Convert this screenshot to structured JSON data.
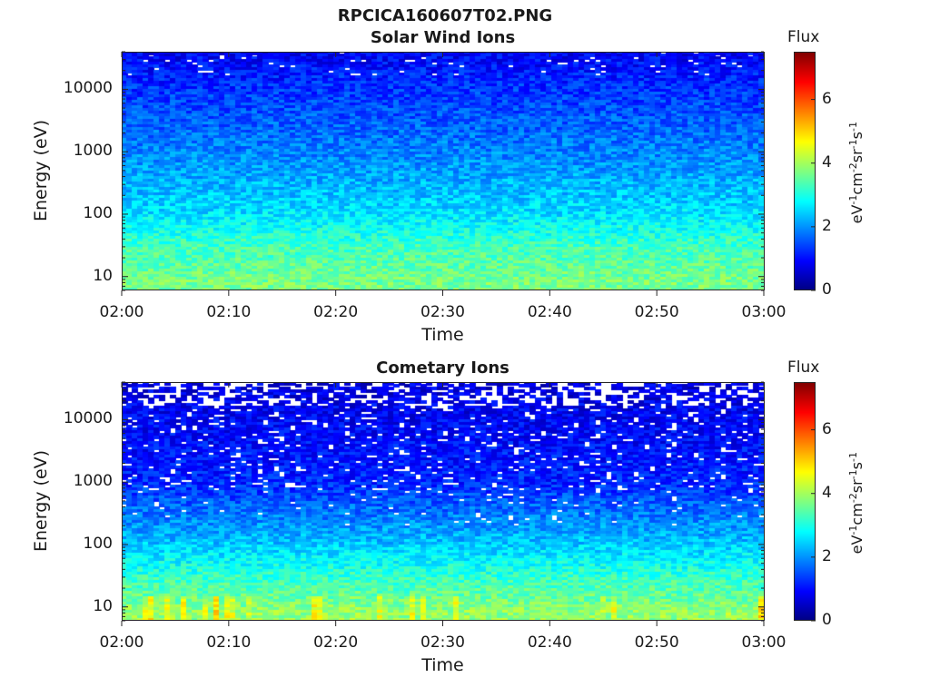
{
  "title": "RPCICA160607T02.PNG",
  "chart_data": [
    {
      "type": "heatmap",
      "title": "Solar Wind Ions",
      "xlabel": "Time",
      "ylabel": "Energy (eV)",
      "x_ticks": [
        "02:00",
        "02:10",
        "02:20",
        "02:30",
        "02:40",
        "02:50",
        "03:00"
      ],
      "x_range": [
        "02:00",
        "03:00"
      ],
      "y_scale": "log",
      "y_ticks": [
        10,
        100,
        1000,
        10000
      ],
      "y_tick_labels": [
        "10",
        "100",
        "1000",
        "10000"
      ],
      "y_range": [
        6,
        40000
      ],
      "colorbar": {
        "label": "Flux",
        "unit": "eV-1cm-2sr-1s-1",
        "range": [
          0,
          7.5
        ],
        "ticks": [
          "0",
          "2",
          "4",
          "6"
        ],
        "colormap": "jet"
      },
      "description_profile": [
        {
          "energy_eV": 8,
          "flux": 3.7
        },
        {
          "energy_eV": 30,
          "flux": 3.3
        },
        {
          "energy_eV": 100,
          "flux": 2.6
        },
        {
          "energy_eV": 1000,
          "flux": 1.9
        },
        {
          "energy_eV": 10000,
          "flux": 1.3
        },
        {
          "energy_eV": 35000,
          "flux": 0.9
        }
      ]
    },
    {
      "type": "heatmap",
      "title": "Cometary Ions",
      "xlabel": "Time",
      "ylabel": "Energy (eV)",
      "x_ticks": [
        "02:00",
        "02:10",
        "02:20",
        "02:30",
        "02:40",
        "02:50",
        "03:00"
      ],
      "x_range": [
        "02:00",
        "03:00"
      ],
      "y_scale": "log",
      "y_ticks": [
        10,
        100,
        1000,
        10000
      ],
      "y_tick_labels": [
        "10",
        "100",
        "1000",
        "10000"
      ],
      "y_range": [
        6,
        40000
      ],
      "colorbar": {
        "label": "Flux",
        "unit": "eV-1cm-2sr-1s-1",
        "range": [
          0,
          7.5
        ],
        "ticks": [
          "0",
          "2",
          "4",
          "6"
        ],
        "colormap": "jet"
      },
      "description_profile": [
        {
          "energy_eV": 8,
          "flux": 3.9
        },
        {
          "energy_eV": 30,
          "flux": 3.2
        },
        {
          "energy_eV": 100,
          "flux": 2.4
        },
        {
          "energy_eV": 1000,
          "flux": 1.2
        },
        {
          "energy_eV": 10000,
          "flux": 0.9
        },
        {
          "energy_eV": 35000,
          "flux": 0.7
        }
      ]
    }
  ]
}
